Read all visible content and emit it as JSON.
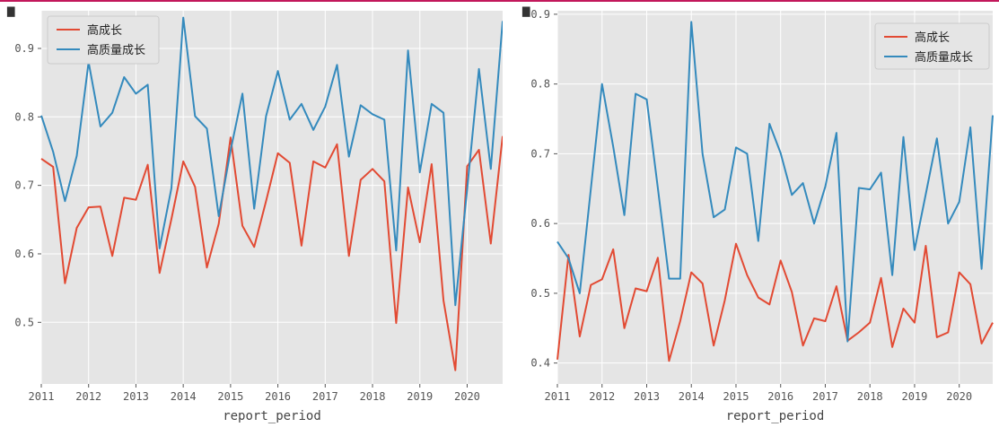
{
  "chart_data": [
    {
      "type": "line",
      "title": "",
      "xlabel": "report_period",
      "ylabel": "",
      "ylim": [
        0.41,
        0.955
      ],
      "xlim": [
        2011,
        2020.75
      ],
      "x": [
        2011,
        2011.25,
        2011.5,
        2011.75,
        2012,
        2012.25,
        2012.5,
        2012.75,
        2013,
        2013.25,
        2013.5,
        2013.75,
        2014,
        2014.25,
        2014.5,
        2014.75,
        2015,
        2015.25,
        2015.5,
        2015.75,
        2016,
        2016.25,
        2016.5,
        2016.75,
        2017,
        2017.25,
        2017.5,
        2017.75,
        2018,
        2018.25,
        2018.5,
        2018.75,
        2019,
        2019.25,
        2019.5,
        2019.75,
        2020,
        2020.25,
        2020.5,
        2020.75
      ],
      "xticks": [
        2011,
        2012,
        2013,
        2014,
        2015,
        2016,
        2017,
        2018,
        2019,
        2020
      ],
      "xtick_labels": [
        "2011",
        "2012",
        "2013",
        "2014",
        "2015",
        "2016",
        "2017",
        "2018",
        "2019",
        "2020"
      ],
      "yticks": [
        0.5,
        0.6,
        0.7,
        0.8,
        0.9
      ],
      "ytick_labels": [
        "0.5",
        "0.6",
        "0.7",
        "0.8",
        "0.9"
      ],
      "legend_position": "top-left",
      "series": [
        {
          "name": "高成长",
          "color": "#e24a33",
          "values": [
            0.739,
            0.727,
            0.557,
            0.638,
            0.668,
            0.669,
            0.597,
            0.682,
            0.679,
            0.73,
            0.572,
            0.651,
            0.735,
            0.698,
            0.58,
            0.644,
            0.77,
            0.641,
            0.61,
            0.677,
            0.747,
            0.733,
            0.612,
            0.735,
            0.726,
            0.76,
            0.597,
            0.708,
            0.724,
            0.706,
            0.499,
            0.697,
            0.617,
            0.731,
            0.532,
            0.43,
            0.728,
            0.752,
            0.615,
            0.772
          ]
        },
        {
          "name": "高质量成长",
          "color": "#348abd",
          "values": [
            0.802,
            0.749,
            0.677,
            0.743,
            0.88,
            0.786,
            0.806,
            0.858,
            0.834,
            0.847,
            0.608,
            0.696,
            0.945,
            0.801,
            0.783,
            0.655,
            0.751,
            0.834,
            0.666,
            0.801,
            0.867,
            0.796,
            0.819,
            0.781,
            0.815,
            0.876,
            0.742,
            0.817,
            0.804,
            0.796,
            0.605,
            0.897,
            0.719,
            0.819,
            0.806,
            0.525,
            0.695,
            0.87,
            0.724,
            0.94
          ]
        }
      ]
    },
    {
      "type": "line",
      "title": "",
      "xlabel": "report_period",
      "ylabel": "",
      "ylim": [
        0.37,
        0.905
      ],
      "xlim": [
        2011,
        2020.75
      ],
      "x": [
        2011,
        2011.25,
        2011.5,
        2011.75,
        2012,
        2012.25,
        2012.5,
        2012.75,
        2013,
        2013.25,
        2013.5,
        2013.75,
        2014,
        2014.25,
        2014.5,
        2014.75,
        2015,
        2015.25,
        2015.5,
        2015.75,
        2016,
        2016.25,
        2016.5,
        2016.75,
        2017,
        2017.25,
        2017.5,
        2017.75,
        2018,
        2018.25,
        2018.5,
        2018.75,
        2019,
        2019.25,
        2019.5,
        2019.75,
        2020,
        2020.25,
        2020.5,
        2020.75
      ],
      "xticks": [
        2011,
        2012,
        2013,
        2014,
        2015,
        2016,
        2017,
        2018,
        2019,
        2020
      ],
      "xtick_labels": [
        "2011",
        "2012",
        "2013",
        "2014",
        "2015",
        "2016",
        "2017",
        "2018",
        "2019",
        "2020"
      ],
      "yticks": [
        0.4,
        0.5,
        0.6,
        0.7,
        0.8,
        0.9
      ],
      "ytick_labels": [
        "0.4",
        "0.5",
        "0.6",
        "0.7",
        "0.8",
        "0.9"
      ],
      "legend_position": "top-right",
      "series": [
        {
          "name": "高成长",
          "color": "#e24a33",
          "values": [
            0.405,
            0.555,
            0.438,
            0.512,
            0.52,
            0.563,
            0.45,
            0.507,
            0.503,
            0.551,
            0.403,
            0.46,
            0.53,
            0.514,
            0.425,
            0.49,
            0.571,
            0.526,
            0.494,
            0.484,
            0.547,
            0.502,
            0.425,
            0.464,
            0.46,
            0.51,
            0.432,
            0.444,
            0.458,
            0.522,
            0.423,
            0.478,
            0.458,
            0.568,
            0.437,
            0.444,
            0.53,
            0.513,
            0.428,
            0.458
          ]
        },
        {
          "name": "高质量成长",
          "color": "#348abd",
          "values": [
            0.574,
            0.55,
            0.5,
            0.65,
            0.8,
            0.71,
            0.612,
            0.786,
            0.778,
            0.651,
            0.521,
            0.521,
            0.889,
            0.7,
            0.609,
            0.62,
            0.709,
            0.7,
            0.575,
            0.743,
            0.701,
            0.641,
            0.658,
            0.6,
            0.653,
            0.73,
            0.431,
            0.651,
            0.649,
            0.673,
            0.526,
            0.724,
            0.562,
            0.642,
            0.722,
            0.6,
            0.631,
            0.738,
            0.535,
            0.755
          ]
        }
      ]
    }
  ]
}
